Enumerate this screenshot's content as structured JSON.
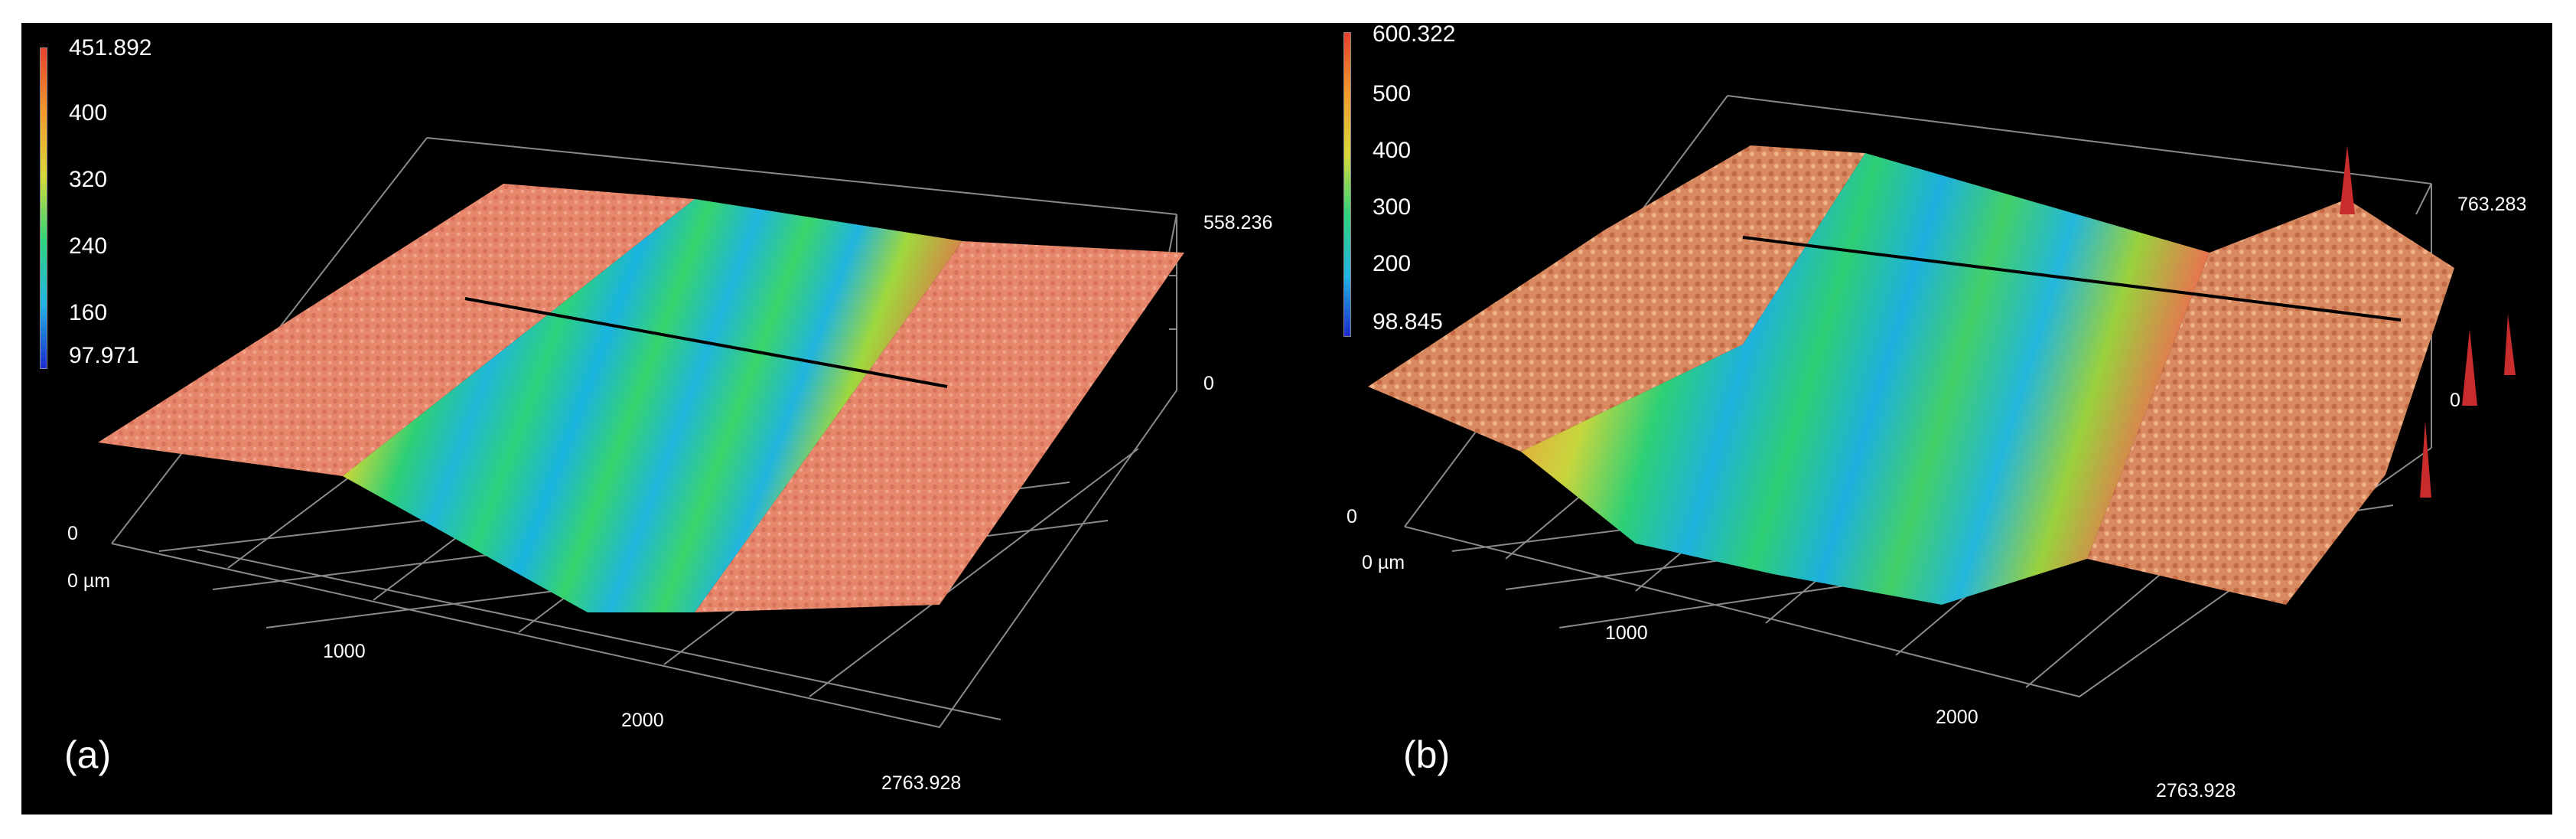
{
  "figure": {
    "panels": [
      {
        "tag": "(a)",
        "colorbar": {
          "ticks": [
            "451.892",
            "400",
            "320",
            "240",
            "160",
            "97.971"
          ],
          "colors": [
            "#e8412e",
            "#f39a2c",
            "#d8d93a",
            "#2fd47b",
            "#21b5e6",
            "#1c2bd0"
          ]
        },
        "axis": {
          "z_max": "558.236",
          "z_min": "0",
          "y_origin": "0",
          "x_origin": "0 µm",
          "x_1000": "1000",
          "x_2000": "2000",
          "x_end": "2763.928"
        }
      },
      {
        "tag": "(b)",
        "colorbar": {
          "ticks": [
            "600.322",
            "500",
            "400",
            "300",
            "200",
            "98.845"
          ],
          "colors": [
            "#e8412e",
            "#f39a2c",
            "#d8d93a",
            "#2fd47b",
            "#21b5e6",
            "#1c2bd0"
          ]
        },
        "axis": {
          "z_max": "763.283",
          "z_min": "0",
          "y_origin": "0",
          "x_origin": "0 µm",
          "x_1000": "1000",
          "x_2000": "2000",
          "x_end": "2763.928"
        }
      }
    ]
  }
}
